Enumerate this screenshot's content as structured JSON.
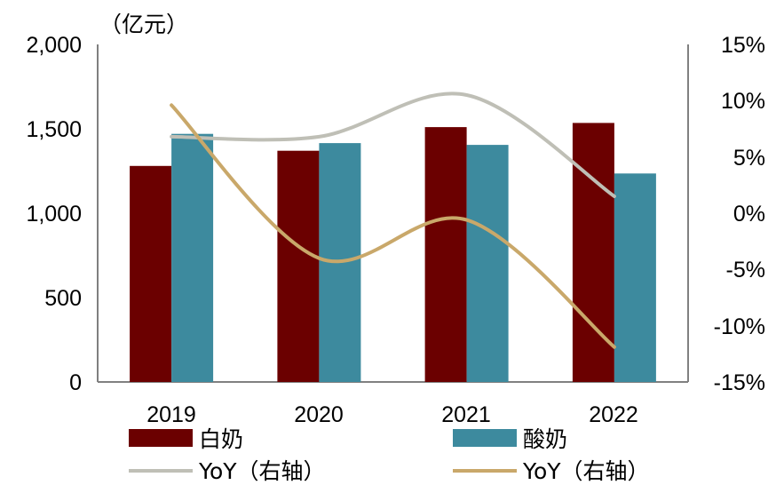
{
  "chart_data": {
    "type": "bar",
    "unit_label": "（亿元）",
    "categories": [
      "2019",
      "2020",
      "2021",
      "2022"
    ],
    "ylim_left": [
      0,
      2000
    ],
    "yticks_left": [
      "2,000",
      "1,500",
      "1,000",
      "500",
      "0"
    ],
    "ylim_right": [
      -15,
      15
    ],
    "yticks_right": [
      "15%",
      "10%",
      "5%",
      "0%",
      "-5%",
      "-10%",
      "-15%"
    ],
    "bar_series": [
      {
        "name": "白奶",
        "values": [
          1280,
          1370,
          1510,
          1535
        ],
        "color": "#6B0000"
      },
      {
        "name": "酸奶",
        "values": [
          1470,
          1415,
          1405,
          1235
        ],
        "color": "#3D8A9E"
      }
    ],
    "line_series": [
      {
        "name": "YoY（右轴）",
        "values": [
          6.8,
          6.8,
          10.5,
          1.5
        ],
        "color": "#BFBFB6"
      },
      {
        "name": "YoY（右轴）",
        "values": [
          9.6,
          -4.0,
          -0.6,
          -11.9
        ],
        "color": "#C9A86A"
      }
    ]
  }
}
